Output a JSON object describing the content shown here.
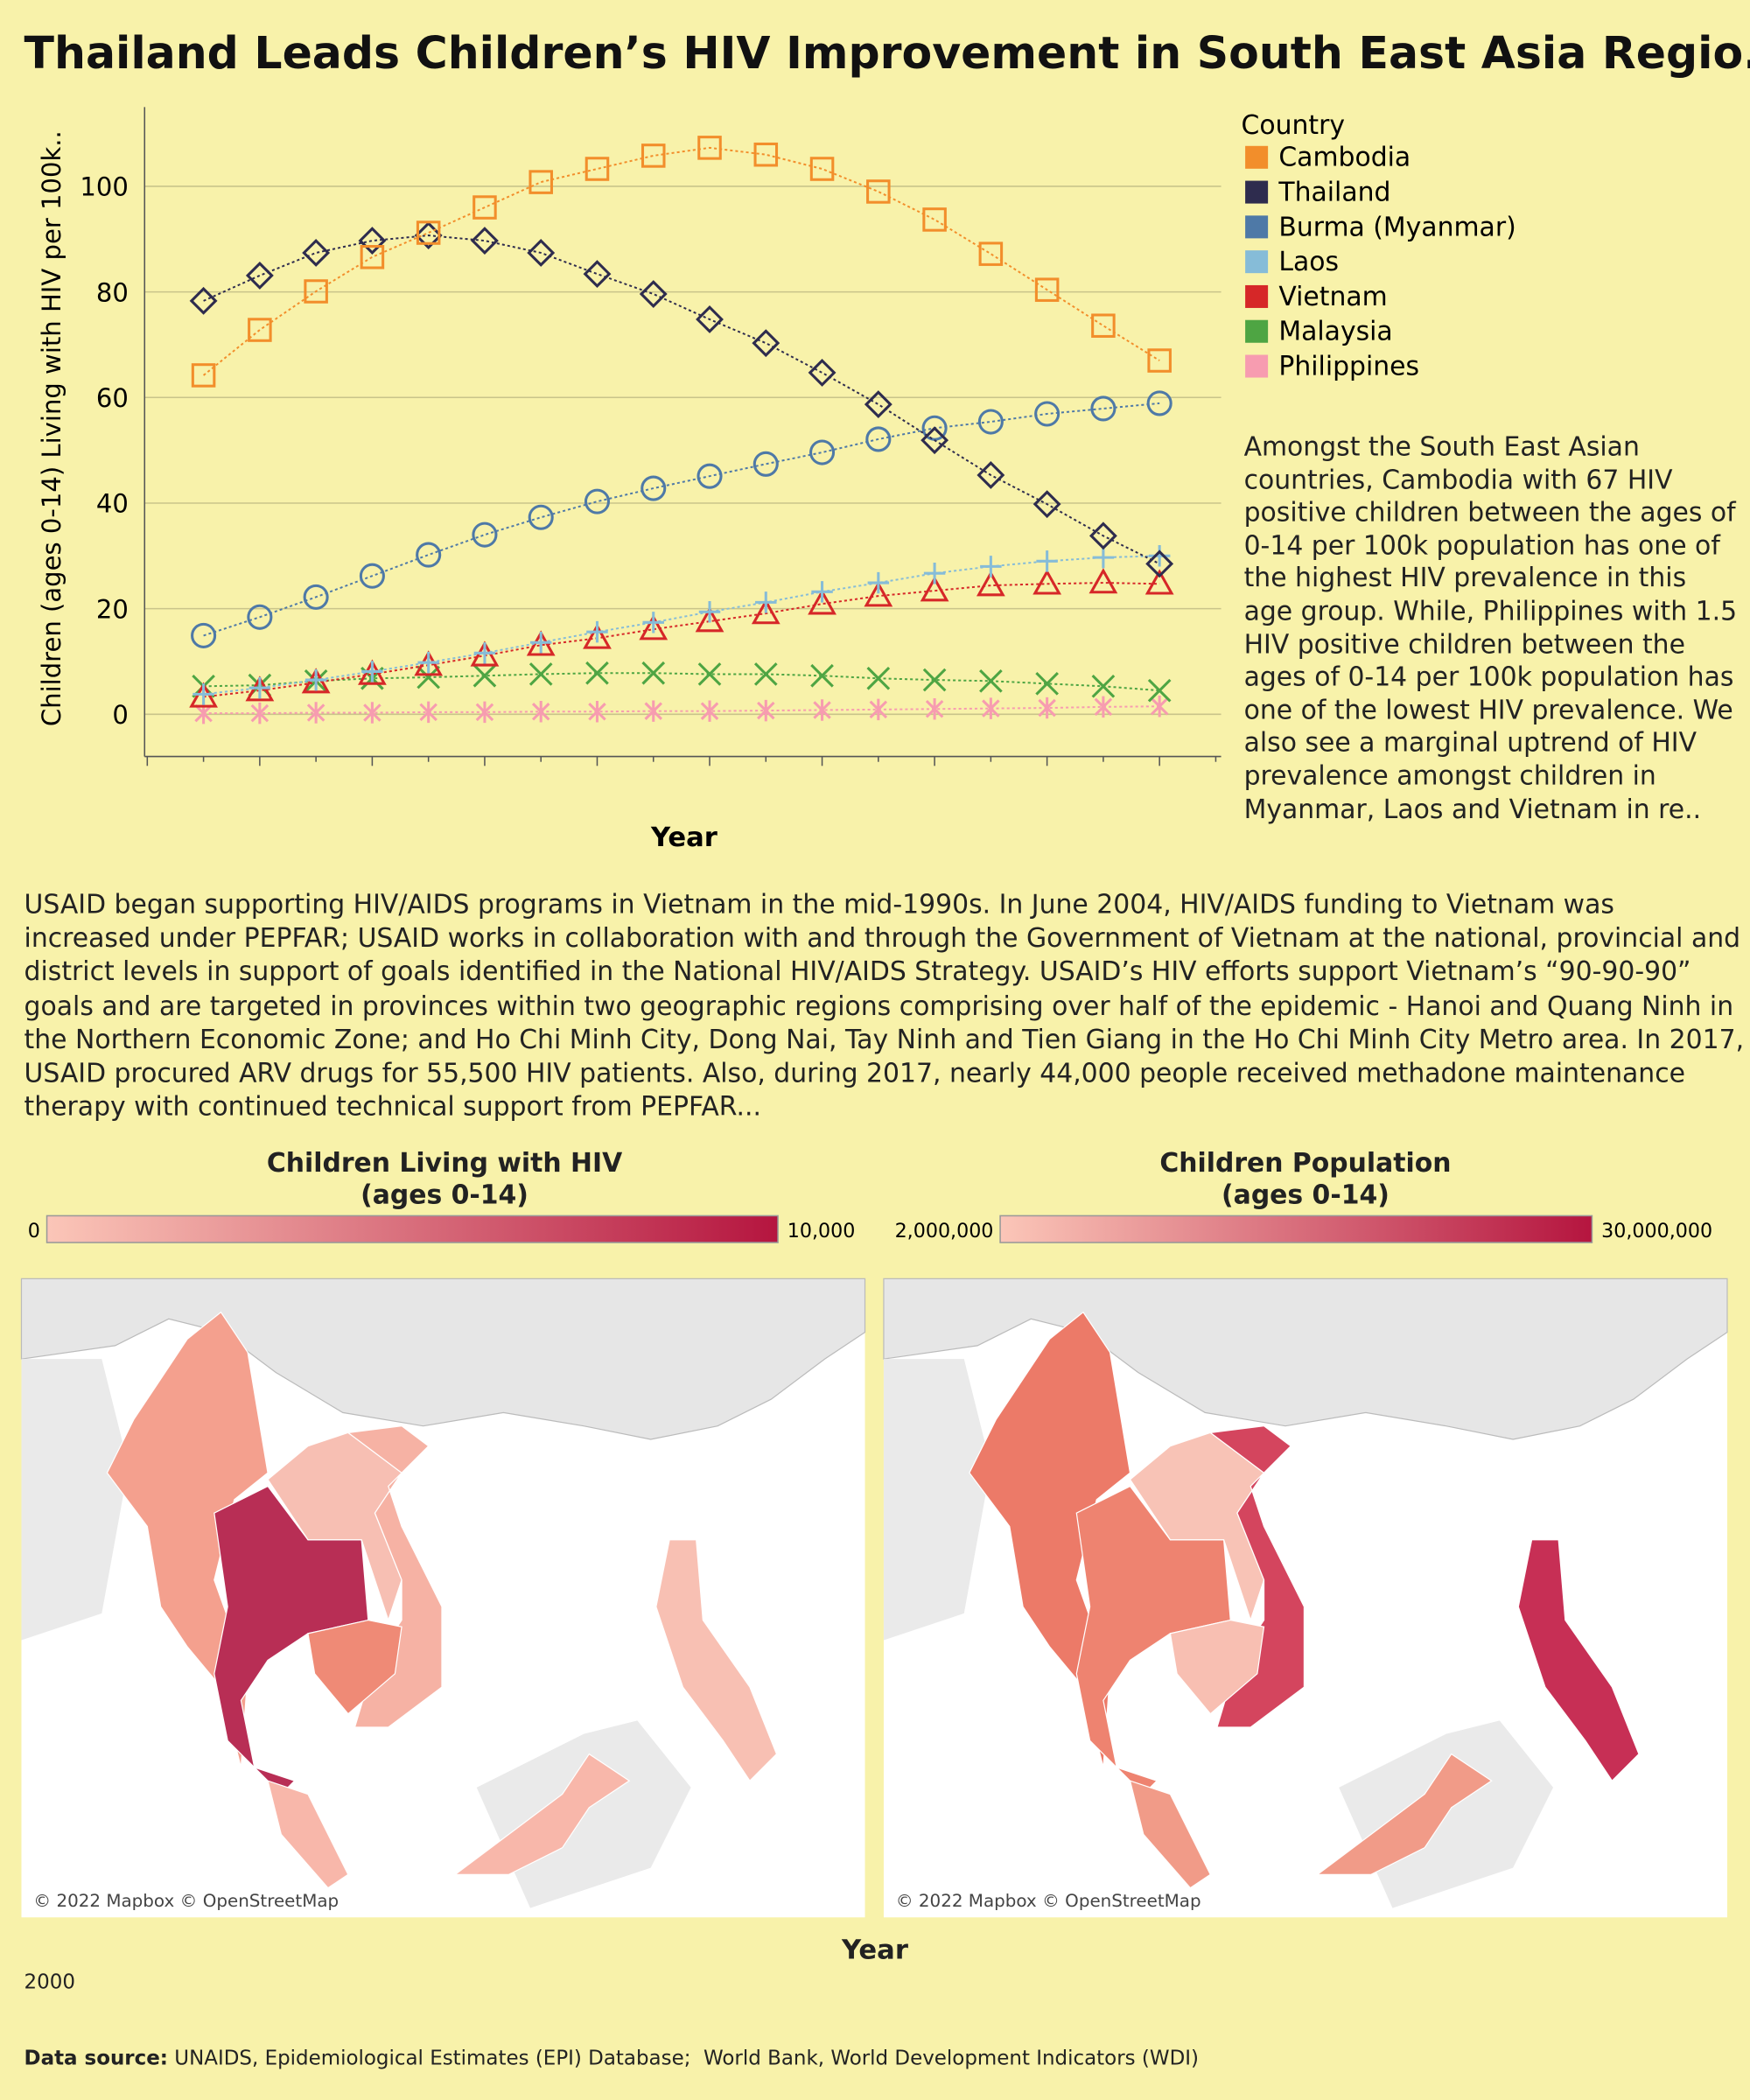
{
  "title": "Thailand Leads Children’s HIV Improvement in South East Asia Regio..",
  "chart_data": {
    "type": "line",
    "y_label": "Children (ages 0-14) Living with HIV per 100k..",
    "x_label": "Year",
    "legend_title": "Country",
    "categories": [
      null,
      null,
      null,
      null,
      null,
      null,
      null,
      null,
      null,
      null,
      null,
      null,
      null,
      null,
      null,
      null,
      null,
      null,
      null,
      null
    ],
    "ylim": [
      -8,
      115
    ],
    "yticks": [
      0,
      20,
      40,
      60,
      80,
      100
    ],
    "grid": true,
    "series": [
      {
        "name": "Cambodia",
        "color": "#f28e2b",
        "marker": "square",
        "values": [
          null,
          64.2,
          72.8,
          80.1,
          86.6,
          91.2,
          96,
          100.8,
          103.3,
          105.8,
          107.3,
          106,
          103.3,
          99,
          93.7,
          87.2,
          80.4,
          73.6,
          67,
          null
        ]
      },
      {
        "name": "Thailand",
        "color": "#2e2c4e",
        "marker": "diamond",
        "values": [
          null,
          78.3,
          83.1,
          87.4,
          89.7,
          90.7,
          89.7,
          87.4,
          83.4,
          79.6,
          74.8,
          70.3,
          64.7,
          58.7,
          51.9,
          45.3,
          39.8,
          33.8,
          28.5,
          null
        ]
      },
      {
        "name": "Burma (Myanmar)",
        "color": "#4e79a7",
        "marker": "circle",
        "values": [
          null,
          14.9,
          18.4,
          22.2,
          26.2,
          30.2,
          34,
          37.3,
          40.3,
          42.8,
          45.1,
          47.4,
          49.6,
          52.1,
          54.2,
          55.4,
          56.9,
          57.9,
          58.9,
          null
        ]
      },
      {
        "name": "Laos",
        "color": "#86bcd8",
        "marker": "plus",
        "values": [
          null,
          3.8,
          5,
          6.5,
          8.1,
          9.8,
          11.6,
          13.6,
          15.6,
          17.4,
          19.4,
          21.2,
          23.2,
          24.9,
          26.7,
          28,
          29,
          29.7,
          30,
          null
        ]
      },
      {
        "name": "Vietnam",
        "color": "#d62728",
        "marker": "triangle",
        "values": [
          null,
          3.3,
          4.5,
          6,
          7.6,
          9.3,
          11.1,
          13.1,
          14.4,
          16.1,
          17.6,
          19.1,
          20.9,
          22.4,
          23.4,
          24.4,
          24.7,
          24.9,
          24.7,
          null
        ]
      },
      {
        "name": "Malaysia",
        "color": "#4ea543",
        "marker": "x",
        "values": [
          null,
          5.3,
          5.5,
          6.3,
          6.8,
          7,
          7.3,
          7.6,
          7.8,
          7.8,
          7.6,
          7.6,
          7.3,
          6.8,
          6.5,
          6.3,
          5.8,
          5.3,
          4.5,
          null
        ]
      },
      {
        "name": "Philippines",
        "color": "#f79cb0",
        "marker": "asterisk",
        "values": [
          null,
          0.2,
          0.2,
          0.3,
          0.3,
          0.4,
          0.4,
          0.5,
          0.5,
          0.6,
          0.6,
          0.7,
          0.8,
          0.9,
          1,
          1.1,
          1.2,
          1.4,
          1.5,
          null
        ]
      }
    ]
  },
  "description": "Amongst the South East Asian countries, Cambodia with 67 HIV positive children between the ages of 0-14 per 100k population has one of the highest HIV prevalence in this age group. While, Philippines with 1.5 HIV positive children between the ages of 0-14 per 100k population has one of the lowest HIV prevalence. We also see a marginal uptrend of HIV prevalence amongst children in Myanmar, Laos and Vietnam in re..",
  "paragraph": "USAID began supporting HIV/AIDS programs in Vietnam in the mid-1990s. In June 2004, HIV/AIDS funding to Vietnam was increased under PEPFAR; USAID works in collaboration with and through the Government of Vietnam at the national, provincial and district levels in support of goals identified in the National HIV/AIDS Strategy. USAID’s HIV efforts support Vietnam’s “90-90-90” goals and are targeted in provinces within two geographic regions comprising over half of the epidemic - Hanoi and Quang Ninh in the Northern Economic Zone; and Ho Chi Minh City, Dong Nai, Tay Ninh and Tien Giang in the Ho Chi Minh City Metro area. In 2017, USAID procured ARV drugs for 55,500 HIV patients. Also, during 2017, nearly 44,000 people received methadone maintenance therapy with continued technical support from PEPFAR...",
  "maps": [
    {
      "title": [
        "Children Living with HIV",
        "(ages 0-14)"
      ],
      "scale": [
        0,
        {
          "value": 10000,
          "label": "10,000"
        }
      ],
      "colors": [
        "#fbc6b8",
        "#b5153f"
      ],
      "attribution": "© 2022 Mapbox © OpenStreetMap"
    },
    {
      "title": [
        "Children Population",
        "(ages 0-14)"
      ],
      "scale": [
        {
          "value": 2000000,
          "label": "2,000,000"
        },
        {
          "value": 30000000,
          "label": "30,000,000"
        }
      ],
      "colors": [
        "#fbc6b8",
        "#b5153f"
      ],
      "attribution": "© 2022 Mapbox © OpenStreetMap"
    }
  ],
  "year_label": "Year",
  "year": "2000",
  "footer": {
    "label": "Data source:",
    "text": " UNAIDS, Epidemiological Estimates (EPI) Database;  World Bank, World Development Indicators (WDI)"
  }
}
